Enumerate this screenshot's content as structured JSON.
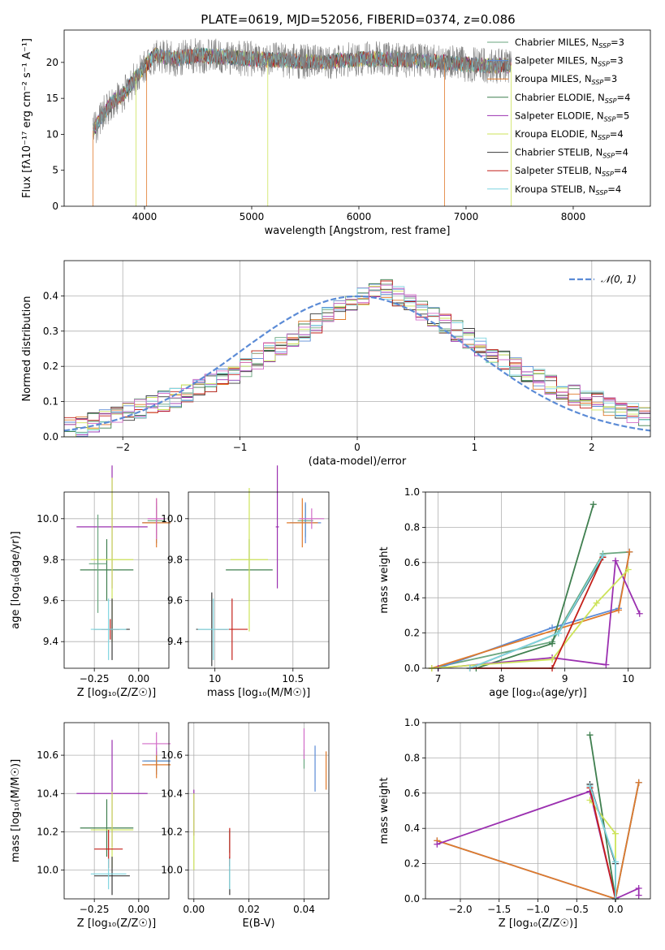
{
  "title": "PLATE=0619, MJD=52056, FIBERID=0374, z=0.086",
  "colors": {
    "grid": "#b0b0b0",
    "gaussian": "#5b8bd6",
    "spectrum": "#808080",
    "series": [
      "#6aa67f",
      "#5b8bd6",
      "#e07a2b",
      "#3f7f4f",
      "#9b30b0",
      "#cde35a",
      "#3a3a3a",
      "#c4201a",
      "#7fd6e0",
      "#d26bc8"
    ]
  },
  "chart_data": [
    {
      "id": "spectrum",
      "type": "line",
      "xlabel": "wavelength [Angstrom, rest frame]",
      "ylabel": "Flux [f$_\\lambda$10$^{-17}$ erg cm$^{-2}$ s$^{-1}$ A$^{-1}$]",
      "ylabel_display": "Flux [fλ10⁻¹⁷ erg cm⁻² s⁻¹ A⁻¹]",
      "xlim": [
        3250,
        8720
      ],
      "ylim": [
        0,
        24.5
      ],
      "xticks": [
        4000,
        5000,
        6000,
        7000,
        8000
      ],
      "yticks": [
        0,
        5,
        10,
        15,
        20
      ],
      "grid": false,
      "legend_position": "right",
      "legend": [
        "Chabrier MILES, N$_{SSP}$=3",
        "Salpeter MILES, N$_{SSP}$=3",
        "Kroupa MILES, N$_{SSP}$=3",
        "Chabrier ELODIE, N$_{SSP}$=4",
        "Salpeter ELODIE, N$_{SSP}$=5",
        "Kroupa ELODIE, N$_{SSP}$=4",
        "Chabrier STELIB, N$_{SSP}$=4",
        "Salpeter STELIB, N$_{SSP}$=4",
        "Kroupa STELIB, N$_{SSP}$=4"
      ],
      "legend_display": [
        "Chabrier MILES, N|SSP|=3",
        "Salpeter MILES, N|SSP|=3",
        "Kroupa MILES, N|SSP|=3",
        "Chabrier ELODIE, N|SSP|=4",
        "Salpeter ELODIE, N|SSP|=5",
        "Kroupa ELODIE, N|SSP|=4",
        "Chabrier STELIB, N|SSP|=4",
        "Salpeter STELIB, N|SSP|=4",
        "Kroupa STELIB, N|SSP|=4"
      ],
      "observed_flux_envelope": {
        "x": [
          3520,
          3600,
          3700,
          3800,
          3900,
          4000,
          4100,
          4300,
          4500,
          4700,
          5000,
          5300,
          5600,
          6000,
          6400,
          6800,
          7200,
          7420
        ],
        "y": [
          10.5,
          12.5,
          14.5,
          15.5,
          17.5,
          19.5,
          21.0,
          20.5,
          21.0,
          20.8,
          20.5,
          20.3,
          20.0,
          20.5,
          20.4,
          20.0,
          19.5,
          19.6
        ]
      },
      "model_cut_wavelengths": [
        3520,
        3920,
        4020,
        5150,
        6800,
        7420
      ]
    },
    {
      "id": "residuals",
      "type": "histogram",
      "xlabel": "(data-model)/error",
      "ylabel": "Normed distribution",
      "xlim": [
        -2.5,
        2.5
      ],
      "ylim": [
        0,
        0.5
      ],
      "xticks": [
        -2,
        -1,
        0,
        1,
        2
      ],
      "yticks": [
        0.0,
        0.1,
        0.2,
        0.3,
        0.4
      ],
      "grid": true,
      "legend_position": "top-right",
      "gaussian_label": "$\\mathcal{N}(0,1)$",
      "gaussian_label_display": "𝒩(0, 1)",
      "bin_width": 0.1,
      "typical_bin_heights": [
        0.025,
        0.03,
        0.04,
        0.05,
        0.06,
        0.07,
        0.08,
        0.09,
        0.1,
        0.11,
        0.12,
        0.135,
        0.15,
        0.165,
        0.18,
        0.2,
        0.22,
        0.24,
        0.26,
        0.28,
        0.3,
        0.32,
        0.34,
        0.36,
        0.38,
        0.4,
        0.41,
        0.42,
        0.4,
        0.38,
        0.36,
        0.34,
        0.32,
        0.3,
        0.28,
        0.26,
        0.24,
        0.22,
        0.2,
        0.18,
        0.165,
        0.15,
        0.135,
        0.12,
        0.11,
        0.1,
        0.09,
        0.08,
        0.07,
        0.06
      ]
    },
    {
      "id": "age-vs-Z",
      "type": "scatter",
      "xlabel": "Z [log$_{10}$($Z/Z_\\odot$)]",
      "xlabel_display": "Z [log₁₀(Z/Z☉)]",
      "ylabel": "age  [log$_{10}$($age/yr$)]",
      "ylabel_display": "age  [log₁₀(age/yr)]",
      "xlim": [
        -0.42,
        0.17
      ],
      "ylim": [
        9.27,
        10.13
      ],
      "xticks": [
        -0.25,
        0.0
      ],
      "xticklabels": [
        "−0.25",
        "0.00"
      ],
      "yticks": [
        9.4,
        9.6,
        9.8,
        10.0
      ],
      "grid": true,
      "points": [
        {
          "series": 0,
          "x": 0.1,
          "xerr": 0.05,
          "y": 9.99,
          "yerr": 0.07
        },
        {
          "series": 1,
          "x": 0.1,
          "xerr": 0.08,
          "y": 9.98,
          "yerr": 0.1
        },
        {
          "series": 2,
          "x": 0.1,
          "xerr": 0.08,
          "y": 9.98,
          "yerr": 0.12
        },
        {
          "series": 3,
          "x": -0.18,
          "xerr": 0.15,
          "y": 9.75,
          "yerr": 0.15
        },
        {
          "series": 4,
          "x": -0.15,
          "xerr": 0.2,
          "y": 9.96,
          "yerr": 0.3
        },
        {
          "series": 5,
          "x": -0.15,
          "xerr": 0.12,
          "y": 9.8,
          "yerr": 0.4
        },
        {
          "series": 6,
          "x": -0.15,
          "xerr": 0.1,
          "y": 9.46,
          "yerr": 0.15
        },
        {
          "series": 7,
          "x": -0.16,
          "xerr": 0.05,
          "y": 9.46,
          "yerr": 0.05
        },
        {
          "series": 8,
          "x": -0.17,
          "xerr": 0.1,
          "y": 9.46,
          "yerr": 0.15
        },
        {
          "series": 9,
          "x": 0.1,
          "xerr": 0.05,
          "y": 10.0,
          "yerr": 0.1
        },
        {
          "series": 0,
          "x": -0.23,
          "xerr": 0.05,
          "y": 9.78,
          "yerr": 0.24
        }
      ]
    },
    {
      "id": "age-vs-mass",
      "type": "scatter",
      "xlabel": "mass [log$_{10}$($M/M_\\odot$)]",
      "xlabel_display": "mass [log₁₀(M/M☉)]",
      "xlim": [
        9.83,
        10.73
      ],
      "ylim": [
        9.27,
        10.13
      ],
      "xticks": [
        10.0,
        10.5
      ],
      "yticks": [
        9.4,
        9.6,
        9.8,
        10.0
      ],
      "grid": true,
      "points": [
        {
          "series": 0,
          "x": 10.58,
          "xerr": 0.05,
          "y": 9.99,
          "yerr": 0.08
        },
        {
          "series": 1,
          "x": 10.58,
          "xerr": 0.1,
          "y": 9.98,
          "yerr": 0.1
        },
        {
          "series": 2,
          "x": 10.56,
          "xerr": 0.1,
          "y": 9.98,
          "yerr": 0.12
        },
        {
          "series": 3,
          "x": 10.22,
          "xerr": 0.15,
          "y": 9.75,
          "yerr": 0.15
        },
        {
          "series": 4,
          "x": 10.4,
          "xerr": 0.01,
          "y": 9.96,
          "yerr": 0.3
        },
        {
          "series": 5,
          "x": 10.22,
          "xerr": 0.12,
          "y": 9.8,
          "yerr": 0.35
        },
        {
          "series": 6,
          "x": 9.98,
          "xerr": 0.1,
          "y": 9.46,
          "yerr": 0.18
        },
        {
          "series": 7,
          "x": 10.11,
          "xerr": 0.1,
          "y": 9.46,
          "yerr": 0.15
        },
        {
          "series": 8,
          "x": 9.99,
          "xerr": 0.1,
          "y": 9.46,
          "yerr": 0.15
        },
        {
          "series": 9,
          "x": 10.62,
          "xerr": 0.08,
          "y": 10.0,
          "yerr": 0.05
        }
      ]
    },
    {
      "id": "mass-weight-vs-age",
      "type": "line",
      "xlabel": "age  [log$_{10}$($age/yr$)]",
      "xlabel_display": "age  [log₁₀(age/yr)]",
      "ylabel": "mass weight",
      "xlim": [
        6.8,
        10.35
      ],
      "ylim": [
        0,
        1.0
      ],
      "xticks": [
        7,
        8,
        9,
        10
      ],
      "yticks": [
        0.0,
        0.2,
        0.4,
        0.6,
        0.8,
        1.0
      ],
      "grid": true,
      "series": [
        {
          "series": 0,
          "x": [
            6.9,
            8.8,
            9.6,
            10.02
          ],
          "y": [
            0.0,
            0.15,
            0.65,
            0.66
          ]
        },
        {
          "series": 1,
          "x": [
            7.0,
            8.8,
            9.85,
            10.02
          ],
          "y": [
            0.0,
            0.23,
            0.34,
            0.66
          ]
        },
        {
          "series": 2,
          "x": [
            6.9,
            9.85,
            10.02
          ],
          "y": [
            0.0,
            0.33,
            0.66
          ]
        },
        {
          "series": 3,
          "x": [
            7.6,
            8.8,
            9.45
          ],
          "y": [
            0.0,
            0.14,
            0.93
          ]
        },
        {
          "series": 4,
          "x": [
            7.0,
            8.8,
            9.65,
            9.8,
            10.18
          ],
          "y": [
            0.0,
            0.06,
            0.02,
            0.61,
            0.31
          ]
        },
        {
          "series": 5,
          "x": [
            6.9,
            8.8,
            9.5,
            10.0
          ],
          "y": [
            0.0,
            0.05,
            0.37,
            0.56
          ]
        },
        {
          "series": 6,
          "x": [
            7.5,
            8.9,
            9.6
          ],
          "y": [
            0.0,
            0.2,
            0.63
          ]
        },
        {
          "series": 7,
          "x": [
            7.5,
            8.8,
            9.6
          ],
          "y": [
            0.0,
            0.0,
            0.63
          ]
        },
        {
          "series": 8,
          "x": [
            7.5,
            8.9,
            9.6
          ],
          "y": [
            0.0,
            0.2,
            0.64
          ]
        }
      ]
    },
    {
      "id": "mass-vs-Z",
      "type": "scatter",
      "xlabel": "Z [log$_{10}$($Z/Z_\\odot$)]",
      "xlabel_display": "Z [log₁₀(Z/Z☉)]",
      "ylabel": "mass [log$_{10}$($M/M_\\odot$)]",
      "ylabel_display": "mass [log₁₀(M/M☉)]",
      "xlim": [
        -0.42,
        0.17
      ],
      "ylim": [
        9.85,
        10.77
      ],
      "xticks": [
        -0.25,
        0.0
      ],
      "xticklabels": [
        "−0.25",
        "0.00"
      ],
      "yticks": [
        10.0,
        10.2,
        10.4,
        10.6
      ],
      "grid": true,
      "points": [
        {
          "series": 0,
          "x": 0.1,
          "xerr": 0.07,
          "y": 10.57,
          "yerr": 0.05
        },
        {
          "series": 1,
          "x": 0.1,
          "xerr": 0.08,
          "y": 10.57,
          "yerr": 0.07
        },
        {
          "series": 2,
          "x": 0.1,
          "xerr": 0.08,
          "y": 10.55,
          "yerr": 0.07
        },
        {
          "series": 3,
          "x": -0.18,
          "xerr": 0.15,
          "y": 10.22,
          "yerr": 0.15
        },
        {
          "series": 4,
          "x": -0.15,
          "xerr": 0.2,
          "y": 10.4,
          "yerr": 0.28
        },
        {
          "series": 5,
          "x": -0.15,
          "xerr": 0.12,
          "y": 10.21,
          "yerr": 0.2
        },
        {
          "series": 6,
          "x": -0.15,
          "xerr": 0.1,
          "y": 9.97,
          "yerr": 0.1
        },
        {
          "series": 7,
          "x": -0.17,
          "xerr": 0.08,
          "y": 10.11,
          "yerr": 0.1
        },
        {
          "series": 8,
          "x": -0.17,
          "xerr": 0.1,
          "y": 9.98,
          "yerr": 0.08
        },
        {
          "series": 9,
          "x": 0.1,
          "xerr": 0.08,
          "y": 10.66,
          "yerr": 0.06
        }
      ]
    },
    {
      "id": "mass-vs-ebv",
      "type": "scatter",
      "xlabel": "E(B-V)",
      "xlim": [
        -0.002,
        0.049
      ],
      "ylim": [
        9.85,
        10.77
      ],
      "xticks": [
        0.0,
        0.02,
        0.04
      ],
      "xticklabels": [
        "0.00",
        "0.02",
        "0.04"
      ],
      "yticks": [
        10.0,
        10.2,
        10.4,
        10.6
      ],
      "grid": true,
      "points": [
        {
          "series": 0,
          "x": 0.04,
          "xerr": 0,
          "y": 10.58,
          "yerr": 0.05
        },
        {
          "series": 1,
          "x": 0.044,
          "xerr": 0,
          "y": 10.53,
          "yerr": 0.12
        },
        {
          "series": 2,
          "x": 0.048,
          "xerr": 0,
          "y": 10.52,
          "yerr": 0.1
        },
        {
          "series": 3,
          "x": 0.013,
          "xerr": 0,
          "y": 10.15,
          "yerr": 0.06
        },
        {
          "series": 4,
          "x": 0.0,
          "xerr": 0,
          "y": 10.3,
          "yerr": 0.12
        },
        {
          "series": 5,
          "x": 0.0,
          "xerr": 0,
          "y": 10.2,
          "yerr": 0.2
        },
        {
          "series": 6,
          "x": 0.013,
          "xerr": 0,
          "y": 9.97,
          "yerr": 0.1
        },
        {
          "series": 7,
          "x": 0.013,
          "xerr": 0,
          "y": 10.12,
          "yerr": 0.1
        },
        {
          "series": 8,
          "x": 0.013,
          "xerr": 0,
          "y": 9.98,
          "yerr": 0.08
        },
        {
          "series": 9,
          "x": 0.04,
          "xerr": 0,
          "y": 10.66,
          "yerr": 0.08
        }
      ]
    },
    {
      "id": "mass-weight-vs-Z",
      "type": "line",
      "xlabel": "Z [log$_{10}$($Z/Z_\\odot$)]",
      "xlabel_display": "Z [log₁₀(Z/Z☉)]",
      "ylabel": "mass weight",
      "xlim": [
        -2.45,
        0.45
      ],
      "ylim": [
        0,
        1.0
      ],
      "xticks": [
        -2.0,
        -1.5,
        -1.0,
        -0.5,
        0.0
      ],
      "xticklabels": [
        "−2.0",
        "−1.5",
        "−1.0",
        "−0.5",
        "0.0"
      ],
      "yticks": [
        0.0,
        0.2,
        0.4,
        0.6,
        0.8,
        1.0
      ],
      "grid": true,
      "series": [
        {
          "series": 0,
          "x": [
            0.0,
            0.3
          ],
          "y": [
            0.0,
            0.66
          ]
        },
        {
          "series": 1,
          "x": [
            -2.3,
            0.0,
            0.3
          ],
          "y": [
            0.33,
            0.0,
            0.66
          ]
        },
        {
          "series": 2,
          "x": [
            -2.3,
            0.0,
            0.3
          ],
          "y": [
            0.33,
            0.0,
            0.66
          ]
        },
        {
          "series": 3,
          "x": [
            -0.33,
            0.0
          ],
          "y": [
            0.93,
            0.0
          ]
        },
        {
          "series": 4,
          "x": [
            -2.3,
            -0.33,
            0.0,
            0.3,
            0.3
          ],
          "y": [
            0.31,
            0.61,
            0.0,
            0.06,
            0.02
          ]
        },
        {
          "series": 5,
          "x": [
            -0.33,
            0.0,
            0.0
          ],
          "y": [
            0.56,
            0.37,
            0.0
          ]
        },
        {
          "series": 6,
          "x": [
            -0.33,
            0.0,
            0.0
          ],
          "y": [
            0.65,
            0.2,
            0.0
          ]
        },
        {
          "series": 7,
          "x": [
            -0.33,
            0.0
          ],
          "y": [
            0.63,
            0.0
          ]
        },
        {
          "series": 8,
          "x": [
            -0.33,
            0.0,
            0.0
          ],
          "y": [
            0.64,
            0.21,
            0.0
          ]
        }
      ]
    }
  ]
}
